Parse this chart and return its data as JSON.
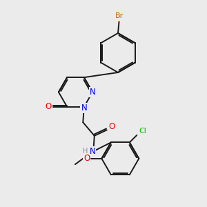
{
  "background_color": "#ebebeb",
  "bond_color": "#1a1a1a",
  "bond_width": 1.4,
  "atom_colors": {
    "N": "#0000ee",
    "O": "#ee0000",
    "Br": "#cc6600",
    "Cl": "#00bb00",
    "H": "#888888",
    "C": "#1a1a1a"
  },
  "font_size": 8.5,
  "fig_width": 3.0,
  "fig_height": 3.0,
  "dpi": 100
}
